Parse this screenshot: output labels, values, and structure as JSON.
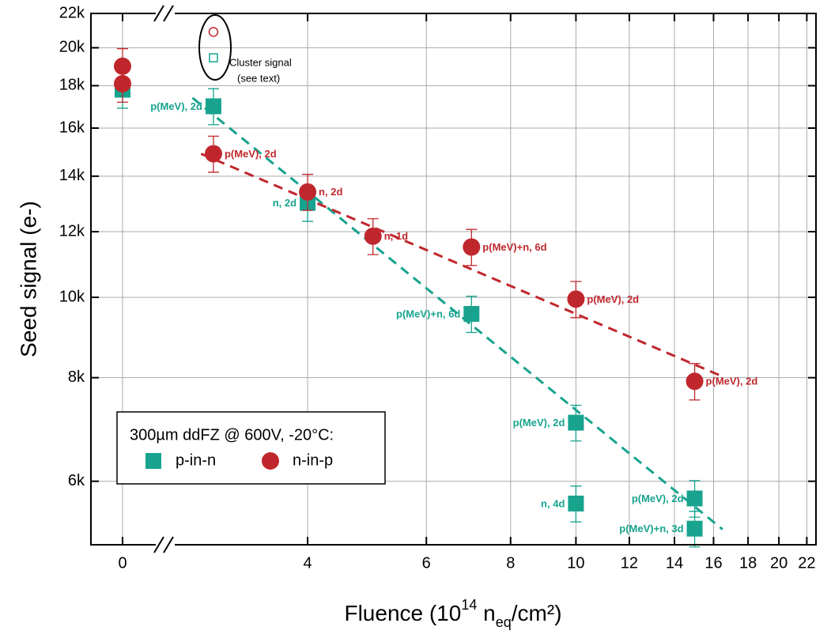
{
  "chart_data": {
    "type": "scatter",
    "ylabel": "Seed signal (e-)",
    "xlabel_parts": [
      "Fluence (10",
      "14",
      " n",
      "eq",
      "/cm²)"
    ],
    "xscale": "log",
    "yscale": "log",
    "xlim": [
      2.5,
      22.7
    ],
    "xticks": [
      4,
      6,
      8,
      10,
      12,
      14,
      16,
      18,
      20,
      22
    ],
    "x_break": {
      "xlim": [
        -0.7,
        0.7
      ],
      "xticks": [
        0
      ]
    },
    "ylim": [
      5030,
      22000
    ],
    "yticks": [
      {
        "value": 6000,
        "label": "6k"
      },
      {
        "value": 8000,
        "label": "8k"
      },
      {
        "value": 10000,
        "label": "10k"
      },
      {
        "value": 12000,
        "label": "12k"
      },
      {
        "value": 14000,
        "label": "14k"
      },
      {
        "value": 16000,
        "label": "16k"
      },
      {
        "value": 18000,
        "label": "18k"
      },
      {
        "value": 20000,
        "label": "20k"
      },
      {
        "value": 22000,
        "label": "22k"
      }
    ],
    "grid": true,
    "legend": {
      "title": "300µm ddFZ @ 600V, -20°C:",
      "corner": "bottom-left"
    },
    "annotation": [
      "Cluster signal",
      "(see text)"
    ],
    "series": [
      {
        "name": "p-in-n",
        "color": "#17a38e",
        "marker": "square",
        "x": [
          0,
          2.9,
          4,
          7,
          10,
          10,
          15,
          15
        ],
        "values": [
          17800,
          17000,
          13000,
          9550,
          7060,
          5640,
          5720,
          5260
        ],
        "errors": [
          890,
          850,
          650,
          480,
          350,
          280,
          290,
          260
        ],
        "point_labels": [
          null,
          "p(MeV), 2d",
          "n, 2d",
          "p(MeV)+n, 6d",
          "p(MeV), 2d",
          "n, 4d",
          "p(MeV), 2d",
          "p(MeV)+n, 3d"
        ],
        "fit": {
          "x": [
            2.7,
            16.5
          ],
          "y": [
            17400,
            5250
          ]
        },
        "cluster": {
          "x": 2.9,
          "value": 19450
        }
      },
      {
        "name": "n-in-p",
        "color": "#c0272d",
        "marker": "circle",
        "x": [
          0,
          0,
          2.9,
          4,
          5,
          7,
          10,
          15
        ],
        "values": [
          19000,
          18100,
          14900,
          13400,
          11850,
          11500,
          9950,
          7920
        ],
        "errors": [
          950,
          905,
          745,
          670,
          590,
          575,
          500,
          400
        ],
        "point_labels": [
          null,
          null,
          "p(MeV), 2d",
          "n, 2d",
          "n, 1d",
          "p(MeV)+n, 6d",
          "p(MeV), 2d",
          "p(MeV), 2d"
        ],
        "fit": {
          "x": [
            2.78,
            16.3
          ],
          "y": [
            14900,
            8060
          ]
        },
        "cluster": {
          "x": 2.9,
          "value": 20900
        }
      }
    ]
  }
}
